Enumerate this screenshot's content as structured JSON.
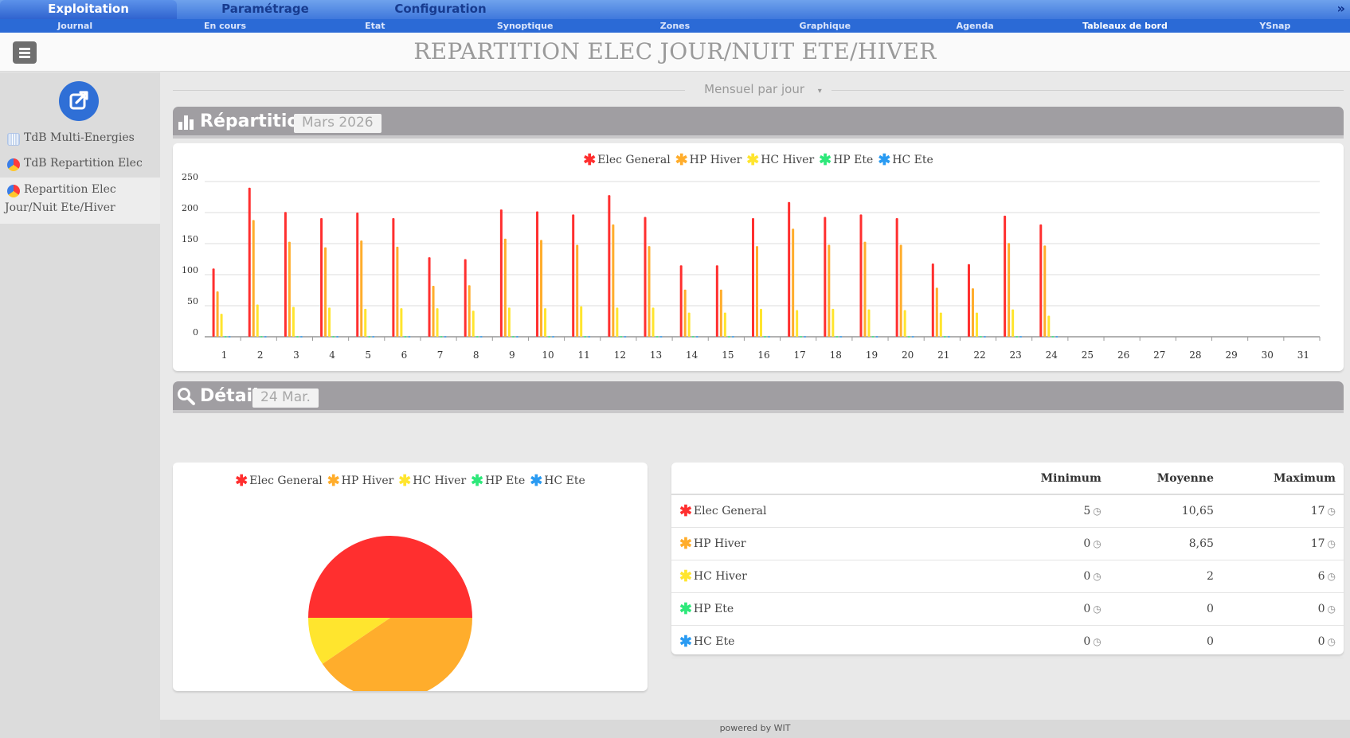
{
  "top_tabs": [
    {
      "label": "Exploitation",
      "active": true
    },
    {
      "label": "Paramétrage",
      "active": false
    },
    {
      "label": "Configuration",
      "active": false
    }
  ],
  "top_arrow": "»",
  "sub_nav": [
    {
      "label": "Journal"
    },
    {
      "label": "En cours"
    },
    {
      "label": "Etat"
    },
    {
      "label": "Synoptique"
    },
    {
      "label": "Zones"
    },
    {
      "label": "Graphique"
    },
    {
      "label": "Agenda"
    },
    {
      "label": "Tableaux de bord",
      "active": true
    },
    {
      "label": "YSnap"
    }
  ],
  "header": {
    "title": "REPARTITION ELEC JOUR/NUIT ETE/HIVER"
  },
  "sidebar": {
    "items": [
      {
        "label": "TdB Multi-Energies",
        "icon": "grid-chart-icon"
      },
      {
        "label": "TdB Repartition Elec",
        "icon": "pie-chart-icon"
      },
      {
        "label_line1": "Repartition Elec",
        "label_line2": "Jour/Nuit Ete/Hiver",
        "icon": "pie-chart-icon",
        "active": true
      }
    ]
  },
  "period": {
    "label": "Mensuel par jour"
  },
  "repartition": {
    "title": "Répartition",
    "badge": "Mars 2026"
  },
  "detail": {
    "title": "Détail",
    "badge": "24 Mar."
  },
  "colors": {
    "Elec General": "#ff2f2f",
    "HP Hiver": "#ffad2c",
    "HC Hiver": "#ffe52e",
    "HP Ete": "#2ee87a",
    "HC Ete": "#2a9bf2"
  },
  "chart_data": [
    {
      "type": "bar",
      "categories": [
        "1",
        "2",
        "3",
        "4",
        "5",
        "6",
        "7",
        "8",
        "9",
        "10",
        "11",
        "12",
        "13",
        "14",
        "15",
        "16",
        "17",
        "18",
        "19",
        "20",
        "21",
        "22",
        "23",
        "24",
        "25",
        "26",
        "27",
        "28",
        "29",
        "30",
        "31"
      ],
      "series": [
        {
          "name": "Elec General",
          "color": "#ff2f2f",
          "values": [
            110,
            240,
            201,
            191,
            200,
            191,
            128,
            125,
            205,
            202,
            197,
            228,
            193,
            115,
            115,
            191,
            217,
            193,
            197,
            191,
            118,
            117,
            195,
            181,
            0,
            0,
            0,
            0,
            0,
            0,
            0
          ]
        },
        {
          "name": "HP Hiver",
          "color": "#ffad2c",
          "values": [
            73,
            188,
            153,
            144,
            155,
            145,
            82,
            83,
            158,
            156,
            148,
            181,
            146,
            76,
            76,
            146,
            174,
            148,
            153,
            148,
            79,
            78,
            151,
            147,
            0,
            0,
            0,
            0,
            0,
            0,
            0
          ]
        },
        {
          "name": "HC Hiver",
          "color": "#ffe52e",
          "values": [
            37,
            52,
            48,
            47,
            45,
            46,
            46,
            42,
            47,
            46,
            49,
            47,
            47,
            39,
            39,
            45,
            43,
            45,
            44,
            43,
            39,
            39,
            44,
            34,
            0,
            0,
            0,
            0,
            0,
            0,
            0
          ]
        },
        {
          "name": "HP Ete",
          "color": "#2ee87a",
          "values": [
            1,
            1,
            1,
            1,
            1,
            1,
            1,
            1,
            1,
            1,
            1,
            1,
            1,
            1,
            1,
            1,
            1,
            1,
            1,
            1,
            1,
            1,
            1,
            1,
            0,
            0,
            0,
            0,
            0,
            0,
            0
          ]
        },
        {
          "name": "HC Ete",
          "color": "#2a9bf2",
          "values": [
            1,
            1,
            1,
            1,
            1,
            1,
            1,
            1,
            1,
            1,
            1,
            1,
            1,
            1,
            1,
            1,
            1,
            1,
            1,
            1,
            1,
            1,
            1,
            1,
            0,
            0,
            0,
            0,
            0,
            0,
            0
          ]
        }
      ],
      "yticks": [
        "0",
        "50",
        "100",
        "150",
        "200",
        "250"
      ],
      "ylim": [
        0,
        250
      ],
      "legend": "top-center",
      "grid": true
    },
    {
      "type": "pie",
      "labels": [
        "Elec General",
        "HP Hiver",
        "HC Hiver",
        "HP Ete",
        "HC Ete"
      ],
      "values": [
        50,
        40.5,
        9.5,
        0,
        0
      ],
      "legend": "top-center"
    }
  ],
  "stats": {
    "headers": [
      "",
      "Minimum",
      "Moyenne",
      "Maximum"
    ],
    "rows": [
      {
        "name": "Elec General",
        "min": "5",
        "avg": "10,65",
        "max": "17"
      },
      {
        "name": "HP Hiver",
        "min": "0",
        "avg": "8,65",
        "max": "17"
      },
      {
        "name": "HC Hiver",
        "min": "0",
        "avg": "2",
        "max": "6"
      },
      {
        "name": "HP Ete",
        "min": "0",
        "avg": "0",
        "max": "0"
      },
      {
        "name": "HC Ete",
        "min": "0",
        "avg": "0",
        "max": "0"
      }
    ]
  },
  "footer": {
    "text": "powered by WIT"
  }
}
